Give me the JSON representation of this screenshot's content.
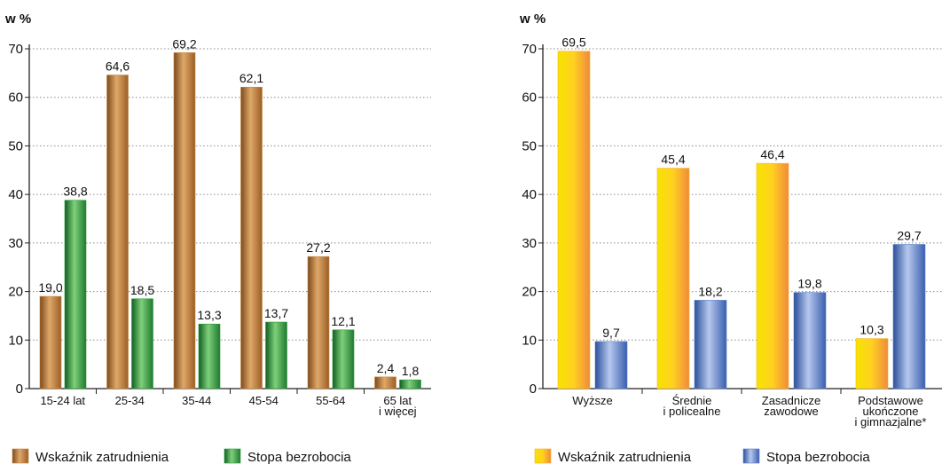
{
  "chart_data": [
    {
      "type": "bar",
      "ylabel": "w %",
      "ylim": [
        0,
        70
      ],
      "yticks": [
        0,
        10,
        20,
        30,
        40,
        50,
        60,
        70
      ],
      "grid": true,
      "legend_position": "bottom-left",
      "categories": [
        [
          "15-24 lat"
        ],
        [
          "25-34"
        ],
        [
          "35-44"
        ],
        [
          "45-54"
        ],
        [
          "55-64"
        ],
        [
          "65 lat",
          "i więcej"
        ]
      ],
      "series": [
        {
          "name": "Wskaźnik zatrudnienia",
          "values": [
            19.0,
            64.6,
            69.2,
            62.1,
            27.2,
            2.4
          ],
          "labels": [
            "19,0",
            "64,6",
            "69,2",
            "62,1",
            "27,2",
            "2,4"
          ],
          "color": "#c8863f"
        },
        {
          "name": "Stopa bezrobocia",
          "values": [
            38.8,
            18.5,
            13.3,
            13.7,
            12.1,
            1.8
          ],
          "labels": [
            "38,8",
            "18,5",
            "13,3",
            "13,7",
            "12,1",
            "1,8"
          ],
          "color": "#2f9a3c"
        }
      ]
    },
    {
      "type": "bar",
      "ylabel": "w %",
      "ylim": [
        0,
        70
      ],
      "yticks": [
        0,
        10,
        20,
        30,
        40,
        50,
        60,
        70
      ],
      "grid": true,
      "legend_position": "bottom-left",
      "categories": [
        [
          "Wyższe"
        ],
        [
          "Średnie",
          "i policealne"
        ],
        [
          "Zasadnicze",
          "zawodowe"
        ],
        [
          "Podstawowe",
          "ukończone",
          "i gimnazjalne*"
        ]
      ],
      "series": [
        {
          "name": "Wskaźnik zatrudnienia",
          "values": [
            69.5,
            45.4,
            46.4,
            10.3
          ],
          "labels": [
            "69,5",
            "45,4",
            "46,4",
            "10,3"
          ],
          "color": "#f5b321"
        },
        {
          "name": "Stopa bezrobocia",
          "values": [
            9.7,
            18.2,
            19.8,
            29.7
          ],
          "labels": [
            "9,7",
            "18,2",
            "19,8",
            "29,7"
          ],
          "color": "#5b7fc2"
        }
      ]
    }
  ]
}
